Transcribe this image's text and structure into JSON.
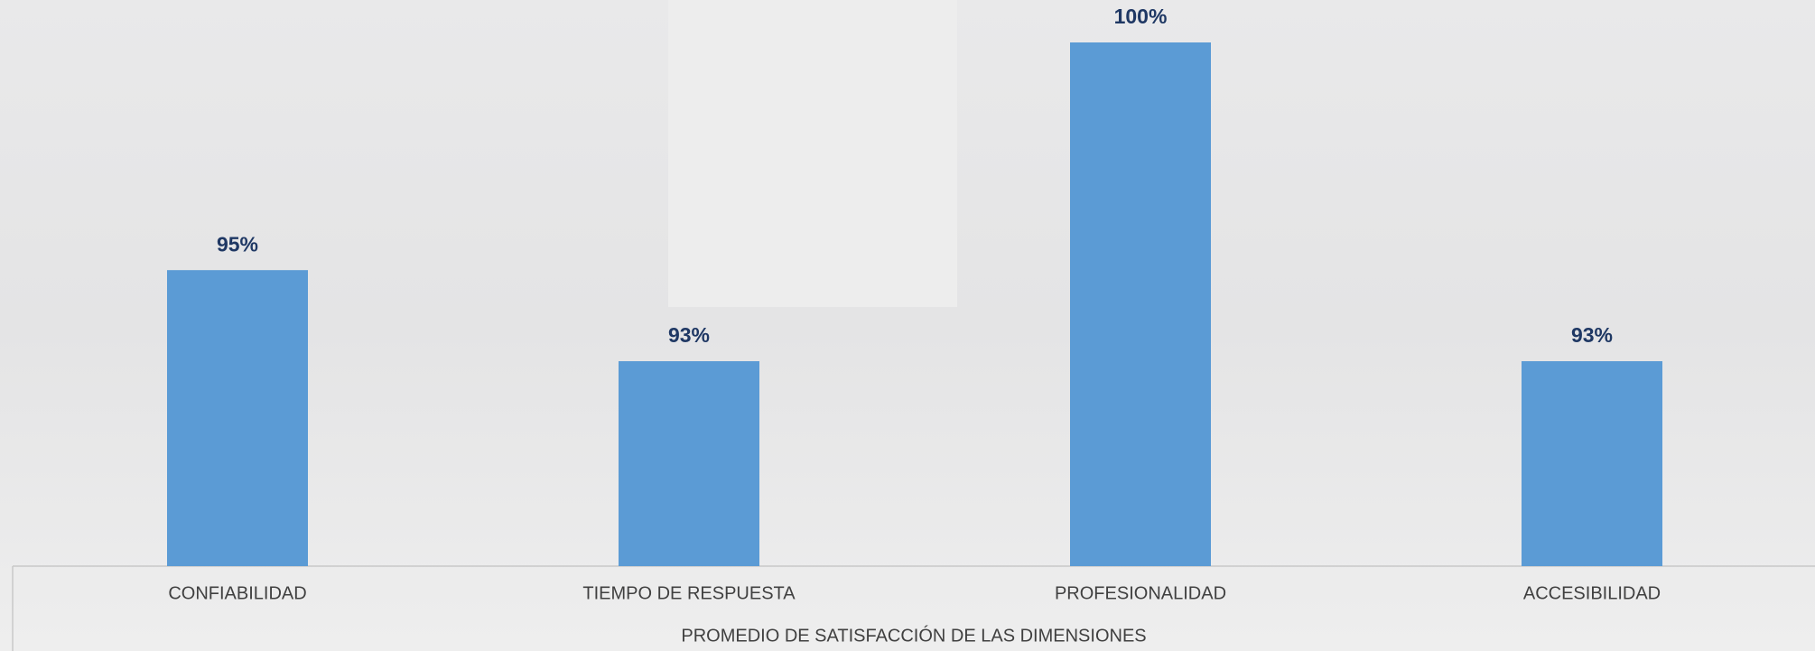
{
  "chart_data": {
    "type": "bar",
    "x_label": "PROMEDIO DE SATISFACCIÓN DE LAS DIMENSIONES",
    "categories": [
      "CONFIABILIDAD",
      "TIEMPO DE RESPUESTA",
      "PROFESIONALIDAD",
      "ACCESIBILIDAD"
    ],
    "values": [
      95,
      93,
      100,
      93
    ],
    "value_labels": [
      "95%",
      "93%",
      "100%",
      "93%"
    ],
    "color": "#5b9bd5",
    "ylim": [
      88.5,
      100
    ]
  }
}
